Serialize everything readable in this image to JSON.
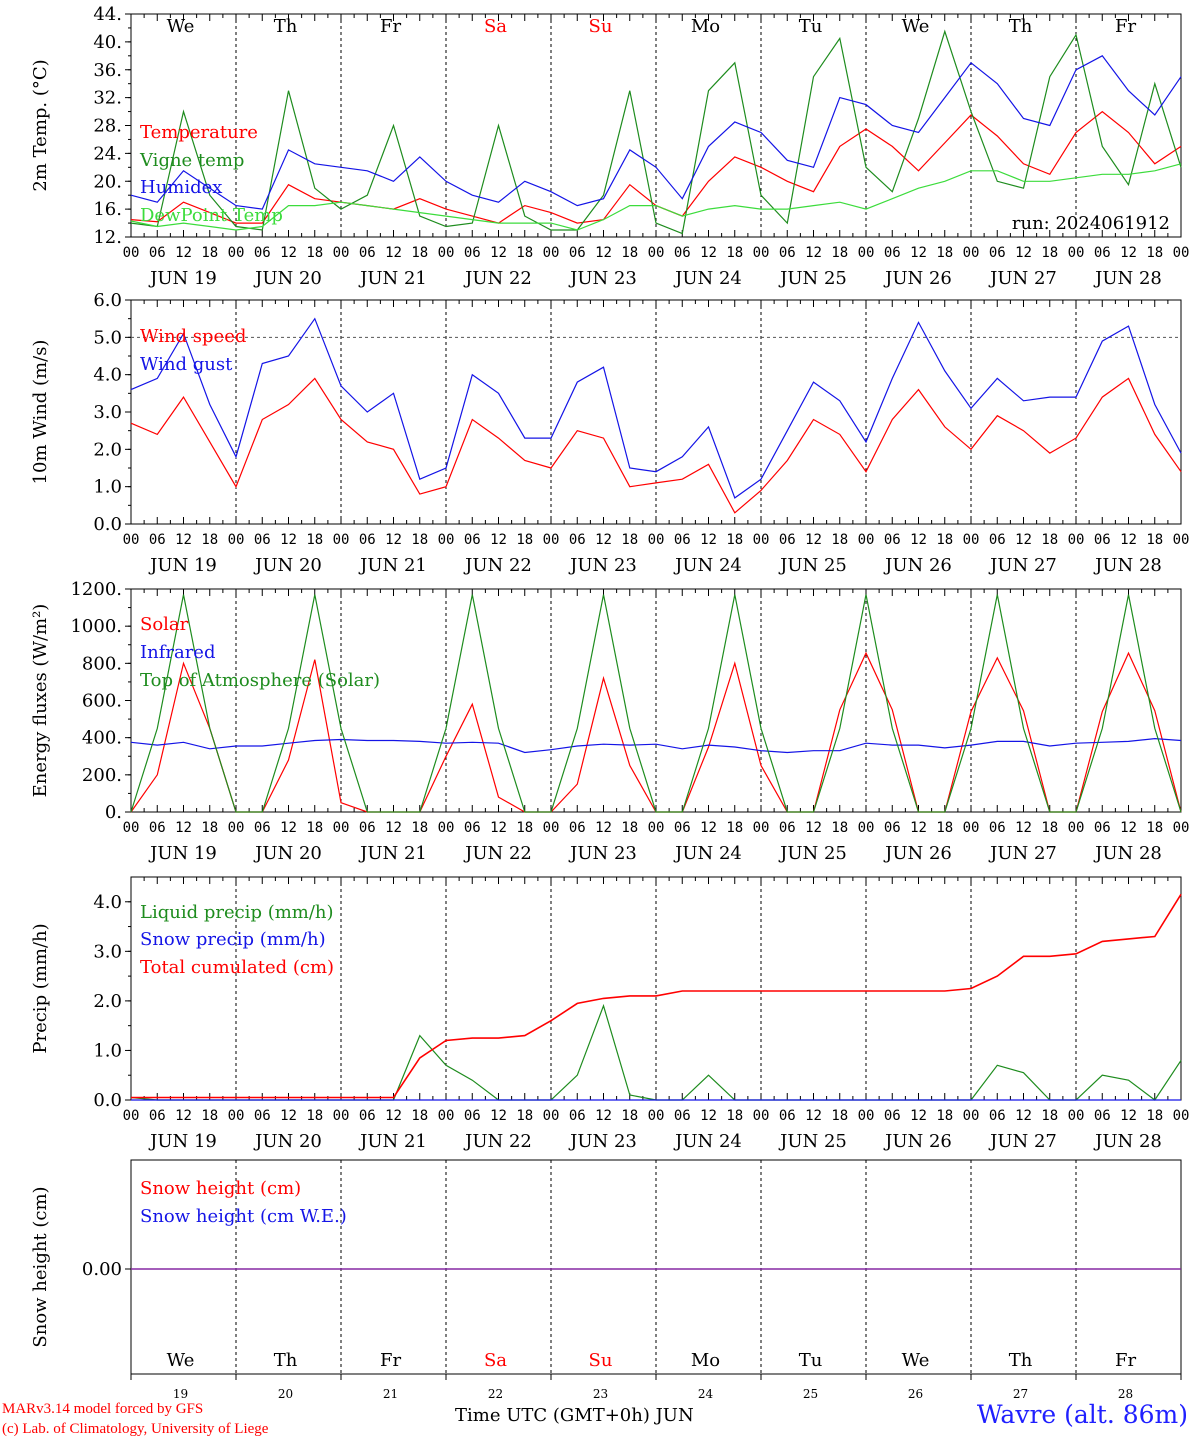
{
  "run_label": "run: 2024061912",
  "footer": {
    "model": "MARv3.14 model forced by GFS",
    "copyright": "(c) Lab. of Climatology, University of Liege",
    "axis_title": "Time UTC (GMT+0h) JUN",
    "location": "Wavre (alt. 86m)"
  },
  "days": [
    {
      "date": "JUN 19",
      "abbr": "We",
      "weekend": false,
      "num": "19"
    },
    {
      "date": "JUN 20",
      "abbr": "Th",
      "weekend": false,
      "num": "20"
    },
    {
      "date": "JUN 21",
      "abbr": "Fr",
      "weekend": false,
      "num": "21"
    },
    {
      "date": "JUN 22",
      "abbr": "Sa",
      "weekend": true,
      "num": "22"
    },
    {
      "date": "JUN 23",
      "abbr": "Su",
      "weekend": true,
      "num": "23"
    },
    {
      "date": "JUN 24",
      "abbr": "Mo",
      "weekend": false,
      "num": "24"
    },
    {
      "date": "JUN 25",
      "abbr": "Tu",
      "weekend": false,
      "num": "25"
    },
    {
      "date": "JUN 26",
      "abbr": "We",
      "weekend": false,
      "num": "26"
    },
    {
      "date": "JUN 27",
      "abbr": "Th",
      "weekend": false,
      "num": "27"
    },
    {
      "date": "JUN 28",
      "abbr": "Fr",
      "weekend": false,
      "num": "28"
    }
  ],
  "hour_labels": [
    "00",
    "06",
    "12",
    "18"
  ],
  "colors": {
    "red": "#ff0000",
    "green": "#1e8c1e",
    "blue": "#1414e6",
    "lightgreen": "#3cdc3c",
    "weekend": "#ff0000",
    "snowline": "#8020a0"
  },
  "chart_data": [
    {
      "type": "line",
      "ylabel": "2m Temp. (°C)",
      "ylim": [
        12,
        44
      ],
      "yticks": [
        "12.",
        "16.",
        "20.",
        "24.",
        "28.",
        "32.",
        "36.",
        "40.",
        "44."
      ],
      "x_hours": [
        0,
        6,
        12,
        18,
        24,
        30,
        36,
        42,
        48,
        54,
        60,
        66,
        72,
        78,
        84,
        90,
        96,
        102,
        108,
        114,
        120,
        126,
        132,
        138,
        144,
        150,
        156,
        162,
        168,
        174,
        180,
        186,
        192,
        198,
        204,
        210,
        216,
        222,
        228,
        234,
        240
      ],
      "series": [
        {
          "name": "Temperature",
          "color": "red",
          "values": [
            14.5,
            14.2,
            17,
            15.5,
            14,
            14,
            19.5,
            17.5,
            17,
            16.5,
            16,
            17.5,
            16,
            15,
            14,
            16.5,
            15.5,
            14,
            14.5,
            19.5,
            16.5,
            15,
            20,
            23.5,
            22,
            20,
            18.5,
            25,
            27.5,
            25,
            21.5,
            25.5,
            29.5,
            26.5,
            22.5,
            21,
            27,
            30,
            27,
            22.5,
            25
          ]
        },
        {
          "name": "Vigne temp",
          "color": "green",
          "values": [
            14,
            13.5,
            30,
            18,
            13.5,
            13,
            33,
            19,
            16,
            18,
            28,
            15,
            13.5,
            14,
            28,
            15,
            13,
            13,
            18,
            33,
            14,
            12.5,
            33,
            37,
            18,
            14,
            35,
            40.5,
            22,
            18.5,
            29,
            41.5,
            30,
            20,
            19,
            35,
            41,
            25,
            19.5,
            34,
            22
          ]
        },
        {
          "name": "Humidex",
          "color": "blue",
          "values": [
            18,
            17,
            21.5,
            19,
            16.5,
            16,
            24.5,
            22.5,
            22,
            21.5,
            20,
            23.5,
            20,
            18,
            17,
            20,
            18.5,
            16.5,
            17.5,
            24.5,
            22,
            17.5,
            25,
            28.5,
            27,
            23,
            22,
            32,
            31,
            28,
            27,
            32,
            37,
            34,
            29,
            28,
            36,
            38,
            33,
            29.5,
            35
          ]
        },
        {
          "name": "DewPoint Temp",
          "color": "lightgreen",
          "values": [
            14.3,
            13.5,
            14,
            13.5,
            13,
            13.5,
            16.5,
            16.5,
            17,
            16.5,
            16,
            15.5,
            15,
            14.5,
            14,
            14,
            14,
            13,
            14.5,
            16.5,
            16.5,
            15,
            16,
            16.5,
            16,
            16,
            16.5,
            17,
            16,
            17.5,
            19,
            20,
            21.5,
            21.5,
            20,
            20,
            20.5,
            21,
            21,
            21.5,
            22.5
          ]
        }
      ]
    },
    {
      "type": "line",
      "ylabel": "10m Wind (m/s)",
      "ylim": [
        0,
        6
      ],
      "yticks": [
        "0.0",
        "1.0",
        "2.0",
        "3.0",
        "4.0",
        "5.0",
        "6.0"
      ],
      "x_hours": [
        0,
        6,
        12,
        18,
        24,
        30,
        36,
        42,
        48,
        54,
        60,
        66,
        72,
        78,
        84,
        90,
        96,
        102,
        108,
        114,
        120,
        126,
        132,
        138,
        144,
        150,
        156,
        162,
        168,
        174,
        180,
        186,
        192,
        198,
        204,
        210,
        216,
        222,
        228,
        234,
        240
      ],
      "series": [
        {
          "name": "Wind speed",
          "color": "red",
          "values": [
            2.7,
            2.4,
            3.4,
            2.2,
            1.0,
            2.8,
            3.2,
            3.9,
            2.8,
            2.2,
            2.0,
            0.8,
            1.0,
            2.8,
            2.3,
            1.7,
            1.5,
            2.5,
            2.3,
            1.0,
            1.1,
            1.2,
            1.6,
            0.3,
            0.9,
            1.7,
            2.8,
            2.4,
            1.4,
            2.8,
            3.6,
            2.6,
            2.0,
            2.9,
            2.5,
            1.9,
            2.3,
            3.4,
            3.9,
            2.4,
            1.4
          ]
        },
        {
          "name": "Wind gust",
          "color": "blue",
          "values": [
            3.6,
            3.9,
            5.1,
            3.2,
            1.8,
            4.3,
            4.5,
            5.5,
            3.7,
            3.0,
            3.5,
            1.2,
            1.5,
            4.0,
            3.5,
            2.3,
            2.3,
            3.8,
            4.2,
            1.5,
            1.4,
            1.8,
            2.6,
            0.7,
            1.2,
            2.5,
            3.8,
            3.3,
            2.2,
            3.9,
            5.4,
            4.1,
            3.1,
            3.9,
            3.3,
            3.4,
            3.4,
            4.9,
            5.3,
            3.2,
            1.9
          ]
        }
      ],
      "reference_line": 5.0
    },
    {
      "type": "line",
      "ylabel": "Energy fluxes (W/m²)",
      "ylim": [
        0,
        1200
      ],
      "yticks": [
        "0.",
        "200.",
        "400.",
        "600.",
        "800.",
        "1000.",
        "1200."
      ],
      "x_hours": [
        0,
        6,
        12,
        18,
        24,
        30,
        36,
        42,
        48,
        54,
        60,
        66,
        72,
        78,
        84,
        90,
        96,
        102,
        108,
        114,
        120,
        126,
        132,
        138,
        144,
        150,
        156,
        162,
        168,
        174,
        180,
        186,
        192,
        198,
        204,
        210,
        216,
        222,
        228,
        234,
        240
      ],
      "series": [
        {
          "name": "Solar",
          "color": "red",
          "values": [
            0,
            200,
            800,
            450,
            0,
            0,
            280,
            820,
            50,
            0,
            0,
            0,
            300,
            580,
            80,
            0,
            0,
            150,
            720,
            250,
            0,
            0,
            350,
            800,
            250,
            0,
            0,
            550,
            855,
            550,
            0,
            0,
            540,
            830,
            545,
            0,
            0,
            540,
            855,
            545,
            0
          ]
        },
        {
          "name": "Infrared",
          "color": "blue",
          "values": [
            375,
            360,
            375,
            340,
            355,
            355,
            370,
            385,
            390,
            385,
            385,
            380,
            370,
            375,
            370,
            320,
            335,
            355,
            365,
            360,
            365,
            340,
            360,
            350,
            330,
            320,
            330,
            330,
            370,
            360,
            360,
            345,
            360,
            380,
            380,
            355,
            370,
            375,
            380,
            395,
            385
          ]
        },
        {
          "name": "Top of Atmosphere (Solar)",
          "color": "green",
          "values": [
            0,
            450,
            1170,
            450,
            0,
            0,
            450,
            1170,
            450,
            0,
            0,
            0,
            450,
            1170,
            450,
            0,
            0,
            450,
            1170,
            450,
            0,
            0,
            450,
            1170,
            450,
            0,
            0,
            450,
            1170,
            450,
            0,
            0,
            450,
            1170,
            450,
            0,
            0,
            450,
            1170,
            450,
            0
          ]
        }
      ]
    },
    {
      "type": "line",
      "ylabel": "Precip (mm/h)",
      "ylim": [
        0,
        4.5
      ],
      "yticks": [
        "0.0",
        "1.0",
        "2.0",
        "3.0",
        "4.0"
      ],
      "x_hours": [
        0,
        6,
        12,
        18,
        24,
        30,
        36,
        42,
        48,
        54,
        60,
        66,
        72,
        78,
        84,
        90,
        96,
        102,
        108,
        114,
        120,
        126,
        132,
        138,
        144,
        150,
        156,
        162,
        168,
        174,
        180,
        186,
        192,
        198,
        204,
        210,
        216,
        222,
        228,
        234,
        240
      ],
      "series": [
        {
          "name": "Liquid precip (mm/h)",
          "color": "green",
          "values": [
            0.05,
            0,
            0,
            0,
            0,
            0,
            0,
            0,
            0,
            0,
            0,
            1.3,
            0.7,
            0.4,
            0,
            0,
            0,
            0.5,
            1.9,
            0.1,
            0,
            0,
            0.5,
            0,
            0,
            0,
            0,
            0,
            0,
            0,
            0,
            0,
            0,
            0.7,
            0.55,
            0,
            0,
            0.5,
            0.4,
            0,
            0.8
          ]
        },
        {
          "name": "Snow precip (mm/h)",
          "color": "blue",
          "values": [
            0,
            0,
            0,
            0,
            0,
            0,
            0,
            0,
            0,
            0,
            0,
            0,
            0,
            0,
            0,
            0,
            0,
            0,
            0,
            0,
            0,
            0,
            0,
            0,
            0,
            0,
            0,
            0,
            0,
            0,
            0,
            0,
            0,
            0,
            0,
            0,
            0,
            0,
            0,
            0,
            0
          ]
        },
        {
          "name": "Total cumulated (cm)",
          "color": "red",
          "values": [
            0.05,
            0.05,
            0.05,
            0.05,
            0.05,
            0.05,
            0.05,
            0.05,
            0.05,
            0.05,
            0.05,
            0.85,
            1.2,
            1.25,
            1.25,
            1.3,
            1.6,
            1.95,
            2.05,
            2.1,
            2.1,
            2.2,
            2.2,
            2.2,
            2.2,
            2.2,
            2.2,
            2.2,
            2.2,
            2.2,
            2.2,
            2.2,
            2.25,
            2.5,
            2.9,
            2.9,
            2.95,
            3.2,
            3.25,
            3.3,
            4.15
          ]
        }
      ]
    },
    {
      "type": "line",
      "ylabel": "Snow height (cm)",
      "yticks": [
        "0.00"
      ],
      "x_hours": [
        0,
        240
      ],
      "series": [
        {
          "name": "Snow height (cm)",
          "color": "red",
          "values": [
            0,
            0
          ]
        },
        {
          "name": "Snow height (cm W.E.)",
          "color": "blue",
          "values": [
            0,
            0
          ]
        }
      ]
    }
  ]
}
